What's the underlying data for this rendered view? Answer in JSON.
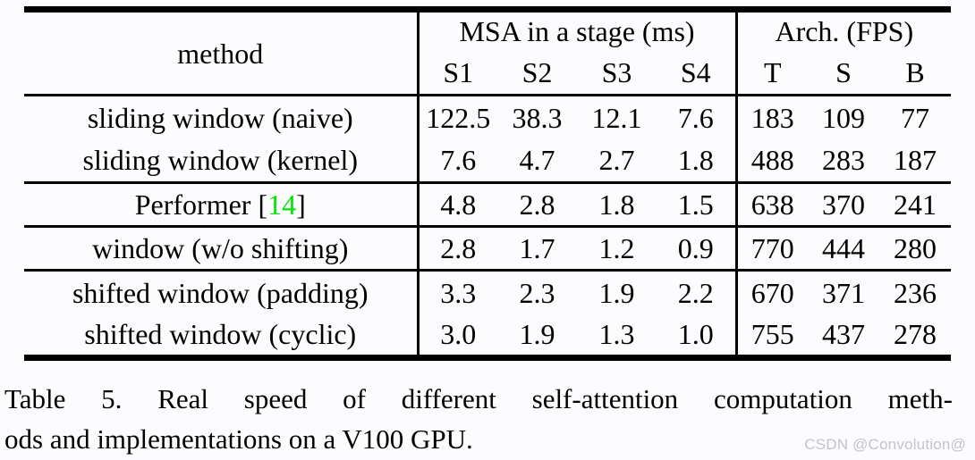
{
  "table": {
    "header": {
      "method": "method",
      "msa_group": "MSA in a stage (ms)",
      "arch_group": "Arch. (FPS)",
      "msa_cols": [
        "S1",
        "S2",
        "S3",
        "S4"
      ],
      "arch_cols": [
        "T",
        "S",
        "B"
      ]
    },
    "rows": [
      {
        "m1": "sliding window (naive)",
        "msa": [
          "122.5",
          "38.3",
          "12.1",
          "7.6"
        ],
        "fps": [
          "183",
          "109",
          "77"
        ]
      },
      {
        "m1": "sliding window (kernel)",
        "msa": [
          "7.6",
          "4.7",
          "2.7",
          "1.8"
        ],
        "fps": [
          "488",
          "283",
          "187"
        ]
      },
      {
        "m1": "Performer [",
        "cite": "14",
        "m2": "]",
        "msa": [
          "4.8",
          "2.8",
          "1.8",
          "1.5"
        ],
        "fps": [
          "638",
          "370",
          "241"
        ]
      },
      {
        "m1": "window (w/o shifting)",
        "msa": [
          "2.8",
          "1.7",
          "1.2",
          "0.9"
        ],
        "fps": [
          "770",
          "444",
          "280"
        ]
      },
      {
        "m1": "shifted window (padding)",
        "msa": [
          "3.3",
          "2.3",
          "1.9",
          "2.2"
        ],
        "fps": [
          "670",
          "371",
          "236"
        ]
      },
      {
        "m1": "shifted window (cyclic)",
        "msa": [
          "3.0",
          "1.9",
          "1.3",
          "1.0"
        ],
        "fps": [
          "755",
          "437",
          "278"
        ]
      }
    ],
    "cite_color": "#00e600",
    "rule_color": "#000000"
  },
  "caption": {
    "line1": "Table 5. Real speed of different self-attention computation meth-",
    "line2": "ods and implementations on a V100 GPU."
  },
  "watermark": {
    "text": "CSDN @Convolution@",
    "color": "#c3c3cb"
  },
  "page": {
    "background": "#fcfbfe"
  }
}
